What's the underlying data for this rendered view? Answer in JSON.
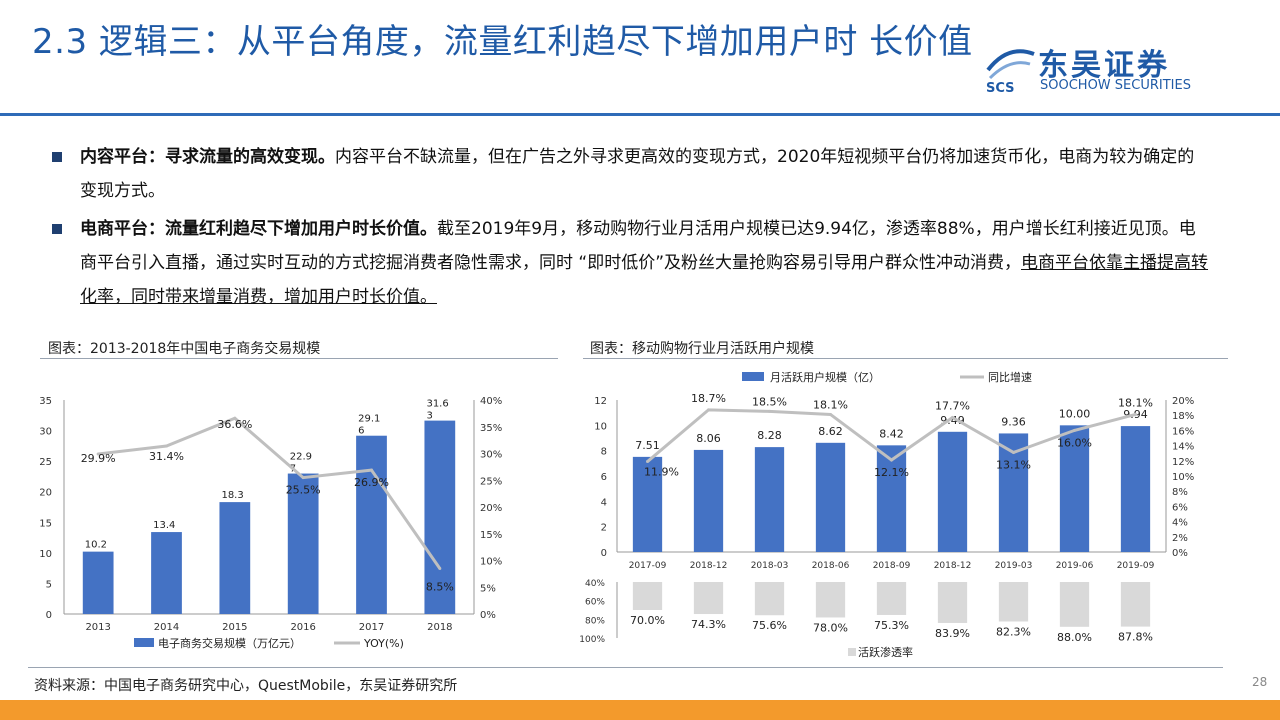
{
  "title": "2.3 逻辑三：从平台角度，流量红利趋尽下增加用户时 长价值",
  "logo": {
    "cn": "东吴证券",
    "en": "SOOCHOW SECURITIES",
    "mark": "SCS"
  },
  "bullets": [
    {
      "bold": "内容平台：寻求流量的高效变现。",
      "text": "内容平台不缺流量，但在广告之外寻求更高效的变现方式，2020年短视频平台仍将加速货币化，电商为较为确定的变现方式。",
      "underline": ""
    },
    {
      "bold": "电商平台：流量红利趋尽下增加用户时长价值。",
      "text": "截至2019年9月，移动购物行业月活用户规模已达9.94亿，渗透率88%，用户增长红利接近见顶。电商平台引入直播，通过实时互动的方式挖掘消费者隐性需求，同时 “即时低价”及粉丝大量抢购容易引导用户群众性冲动消费，",
      "underline": "电商平台依靠主播提高转化率，同时带来增量消费，增加用户时长价值。"
    }
  ],
  "fig_left_title": "图表：2013-2018年中国电子商务交易规模",
  "fig_right_title": "图表：移动购物行业月活跃用户规模",
  "footer": "资料来源：中国电子商务研究中心，QuestMobile，东吴证券研究所",
  "page_number": "28",
  "colors": {
    "bar": "#4472c4",
    "line": "#bfbfbf",
    "gray_bar": "#d9d9d9",
    "title": "#1f5aa6",
    "orange": "#f39a2c"
  },
  "chart_data": [
    {
      "type": "bar",
      "categories": [
        "2013",
        "2014",
        "2015",
        "2016",
        "2017",
        "2018"
      ],
      "series": [
        {
          "name": "电子商务交易规模（万亿元）",
          "type": "bar",
          "axis": "left",
          "values": [
            10.2,
            13.4,
            18.3,
            22.97,
            29.16,
            31.63
          ],
          "labels": [
            "10.2",
            "13.4",
            "18.3",
            "22.97",
            "29.16",
            "31.63"
          ]
        },
        {
          "name": "YOY(%)",
          "type": "line",
          "axis": "right",
          "values": [
            29.9,
            31.4,
            36.6,
            25.5,
            26.9,
            8.5
          ],
          "labels": [
            "29.9%",
            "31.4%",
            "36.6%",
            "25.5%",
            "26.9%",
            "8.5%"
          ]
        }
      ],
      "y_left": {
        "range": [
          0,
          35
        ],
        "ticks": [
          "0",
          "5",
          "10",
          "15",
          "20",
          "25",
          "30",
          "35"
        ]
      },
      "y_right": {
        "range": [
          0,
          40
        ],
        "ticks": [
          "0%",
          "5%",
          "10%",
          "15%",
          "20%",
          "25%",
          "30%",
          "35%",
          "40%"
        ]
      },
      "legend": "bottom"
    },
    {
      "type": "bar",
      "categories": [
        "2017-09",
        "2018-12",
        "2018-03",
        "2018-06",
        "2018-09",
        "2018-12",
        "2019-03",
        "2019-06",
        "2019-09"
      ],
      "series": [
        {
          "name": "月活跃用户规模（亿）",
          "type": "bar",
          "axis": "left",
          "values": [
            7.51,
            8.06,
            8.28,
            8.62,
            8.42,
            9.49,
            9.36,
            10.0,
            9.94
          ],
          "labels": [
            "7.51",
            "8.06",
            "8.28",
            "8.62",
            "8.42",
            "9.49",
            "9.36",
            "10.00",
            "9.94"
          ]
        },
        {
          "name": "同比增速",
          "type": "line",
          "axis": "right",
          "values": [
            11.9,
            18.7,
            18.5,
            18.1,
            12.1,
            17.7,
            13.1,
            16.0,
            18.1
          ],
          "labels": [
            "11.9%",
            "18.7%",
            "18.5%",
            "18.1%",
            "12.1%",
            "17.7%",
            "13.1%",
            "16.0%",
            "18.1%"
          ]
        }
      ],
      "y_left": {
        "range": [
          0,
          12
        ],
        "ticks": [
          "0",
          "2",
          "4",
          "6",
          "8",
          "10",
          "12"
        ]
      },
      "y_right": {
        "range": [
          0,
          20
        ],
        "ticks": [
          "0%",
          "2%",
          "4%",
          "6%",
          "8%",
          "10%",
          "12%",
          "14%",
          "16%",
          "18%",
          "20%"
        ]
      },
      "legend": "top"
    },
    {
      "type": "bar",
      "categories": [
        "2017-09",
        "2018-12",
        "2018-03",
        "2018-06",
        "2018-09",
        "2018-12",
        "2019-03",
        "2019-06",
        "2019-09"
      ],
      "series": [
        {
          "name": "活跃渗透率",
          "values": [
            70.0,
            74.3,
            75.6,
            78.0,
            75.3,
            83.9,
            82.3,
            88.0,
            87.8
          ],
          "labels": [
            "70.0%",
            "74.3%",
            "75.6%",
            "78.0%",
            "75.3%",
            "83.9%",
            "82.3%",
            "88.0%",
            "87.8%"
          ]
        }
      ],
      "y": {
        "range": [
          40,
          100
        ],
        "inverted": true,
        "ticks": [
          "40%",
          "60%",
          "80%",
          "100%"
        ]
      },
      "legend": "bottom"
    }
  ]
}
